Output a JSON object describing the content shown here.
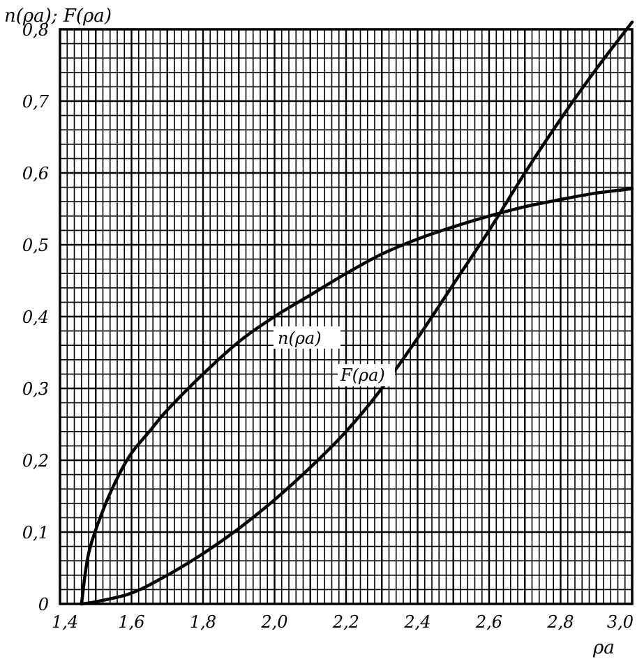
{
  "chart_data": {
    "type": "line",
    "title": "",
    "ylabel": "n(ρa); F(ρa)",
    "xlabel": "ρa",
    "xlim": [
      1.4,
      3.0
    ],
    "ylim": [
      0,
      0.8
    ],
    "grid": true,
    "xticks": [
      1.4,
      1.6,
      1.8,
      2.0,
      2.2,
      2.4,
      2.6,
      2.8,
      3.0
    ],
    "xtick_labels": [
      "1,4",
      "1,6",
      "1,8",
      "2,0",
      "2,2",
      "2,4",
      "2,6",
      "2,8",
      "3,0"
    ],
    "yticks": [
      0,
      0.1,
      0.2,
      0.3,
      0.4,
      0.5,
      0.6,
      0.7,
      0.8
    ],
    "ytick_labels": [
      "0",
      "0,1",
      "0,2",
      "0,3",
      "0,4",
      "0,5",
      "0,6",
      "0,7",
      "0,8"
    ],
    "series": [
      {
        "name": "n(ρa)",
        "color": "#000000",
        "x": [
          1.46,
          1.48,
          1.52,
          1.56,
          1.6,
          1.65,
          1.7,
          1.8,
          1.9,
          2.0,
          2.1,
          2.2,
          2.3,
          2.4,
          2.5,
          2.6,
          2.7,
          2.8,
          2.9,
          3.0
        ],
        "y": [
          0.0,
          0.07,
          0.13,
          0.175,
          0.21,
          0.24,
          0.27,
          0.32,
          0.365,
          0.4,
          0.43,
          0.46,
          0.487,
          0.508,
          0.525,
          0.54,
          0.553,
          0.563,
          0.572,
          0.578
        ]
      },
      {
        "name": "F(ρa)",
        "color": "#000000",
        "x": [
          1.46,
          1.5,
          1.6,
          1.7,
          1.8,
          1.9,
          2.0,
          2.1,
          2.2,
          2.3,
          2.4,
          2.5,
          2.6,
          2.7,
          2.8,
          2.9,
          3.0
        ],
        "y": [
          0.0,
          0.003,
          0.015,
          0.04,
          0.07,
          0.105,
          0.145,
          0.19,
          0.24,
          0.3,
          0.37,
          0.445,
          0.52,
          0.6,
          0.675,
          0.745,
          0.81
        ]
      }
    ]
  }
}
